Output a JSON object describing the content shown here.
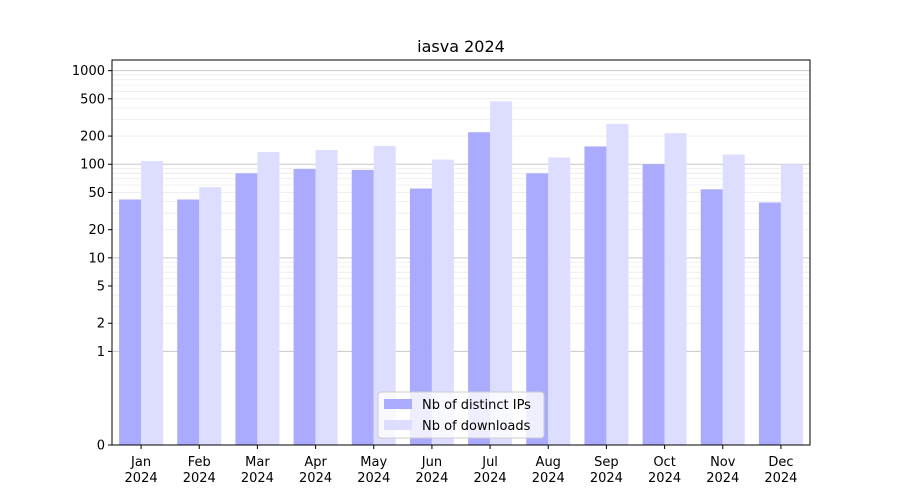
{
  "chart_data": {
    "type": "bar",
    "title": "iasva 2024",
    "xlabel": "",
    "ylabel": "",
    "yscale": "symlog",
    "ylim": [
      0,
      1300
    ],
    "yticks": [
      0,
      1,
      2,
      5,
      10,
      20,
      50,
      100,
      200,
      500,
      1000
    ],
    "ytick_labels": [
      "0",
      "1",
      "2",
      "5",
      "10",
      "20",
      "50",
      "100",
      "200",
      "500",
      "1000"
    ],
    "categories": [
      "Jan\n2024",
      "Feb\n2024",
      "Mar\n2024",
      "Apr\n2024",
      "May\n2024",
      "Jun\n2024",
      "Jul\n2024",
      "Aug\n2024",
      "Sep\n2024",
      "Oct\n2024",
      "Nov\n2024",
      "Dec\n2024"
    ],
    "category_lines": [
      [
        "Jan",
        "2024"
      ],
      [
        "Feb",
        "2024"
      ],
      [
        "Mar",
        "2024"
      ],
      [
        "Apr",
        "2024"
      ],
      [
        "May",
        "2024"
      ],
      [
        "Jun",
        "2024"
      ],
      [
        "Jul",
        "2024"
      ],
      [
        "Aug",
        "2024"
      ],
      [
        "Sep",
        "2024"
      ],
      [
        "Oct",
        "2024"
      ],
      [
        "Nov",
        "2024"
      ],
      [
        "Dec",
        "2024"
      ]
    ],
    "series": [
      {
        "name": "Nb of distinct IPs",
        "color": "#aaaaff",
        "values": [
          42,
          42,
          80,
          89,
          87,
          55,
          220,
          80,
          155,
          100,
          54,
          39
        ]
      },
      {
        "name": "Nb of downloads",
        "color": "#ddddff",
        "values": [
          108,
          57,
          135,
          142,
          157,
          112,
          470,
          118,
          270,
          215,
          127,
          100
        ]
      }
    ],
    "grid": true,
    "legend_position": "bottom-center"
  }
}
